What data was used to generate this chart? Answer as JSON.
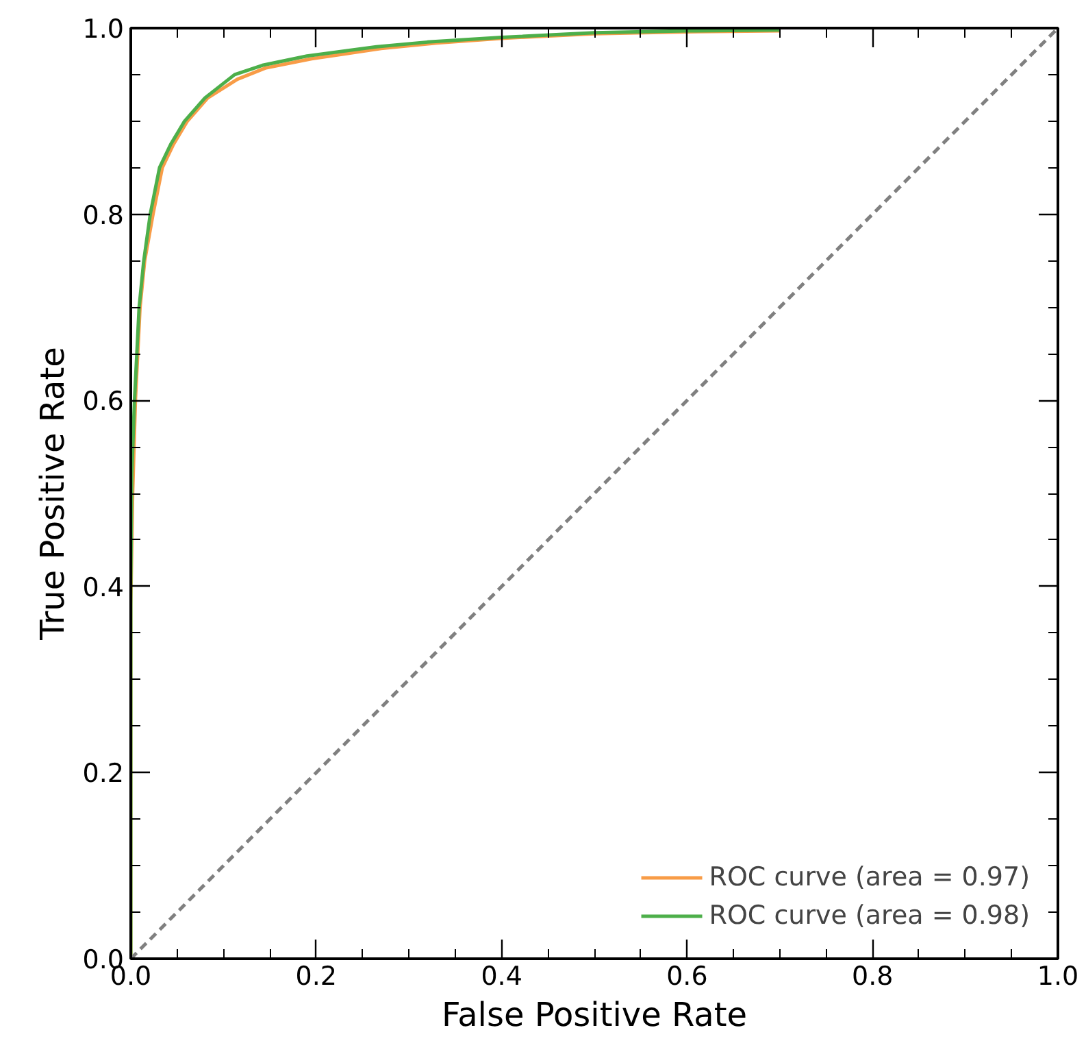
{
  "chart_data": {
    "type": "line",
    "xlabel": "False Positive Rate",
    "ylabel": "True Positive Rate",
    "xlim": [
      0,
      1
    ],
    "ylim": [
      0,
      1
    ],
    "xticks": [
      {
        "value": 0,
        "label": "0.0"
      },
      0.2,
      0.4,
      0.6,
      0.8,
      {
        "value": 1,
        "label": "1.0"
      }
    ],
    "yticks": [
      {
        "value": 0,
        "label": "0.0"
      },
      0.2,
      0.4,
      0.6,
      0.8,
      {
        "value": 1,
        "label": "1.0"
      }
    ],
    "grid": false,
    "legend": "bottom right",
    "series": [
      {
        "name": "ROC curve (area = 0.97)",
        "color": "#f89c47",
        "x": [
          0,
          0.0,
          0.002,
          0.005,
          0.01,
          0.015,
          0.024,
          0.034,
          0.046,
          0.061,
          0.083,
          0.115,
          0.145,
          0.195,
          0.27,
          0.33,
          0.4,
          0.5,
          0.6,
          0.7
        ],
        "values": [
          0,
          0.38,
          0.5,
          0.6,
          0.7,
          0.75,
          0.8,
          0.85,
          0.875,
          0.9,
          0.925,
          0.945,
          0.957,
          0.967,
          0.978,
          0.984,
          0.989,
          0.994,
          0.996,
          0.997
        ]
      },
      {
        "name": "ROC curve (area = 0.98)",
        "color": "#4daf4a",
        "x": [
          0,
          0.0,
          0.001,
          0.004,
          0.009,
          0.014,
          0.021,
          0.031,
          0.043,
          0.058,
          0.08,
          0.112,
          0.142,
          0.19,
          0.265,
          0.32,
          0.4,
          0.5,
          0.6,
          0.7
        ],
        "values": [
          0,
          0.4,
          0.52,
          0.6,
          0.7,
          0.75,
          0.8,
          0.85,
          0.875,
          0.9,
          0.925,
          0.95,
          0.96,
          0.97,
          0.98,
          0.985,
          0.99,
          0.995,
          0.997,
          0.998
        ]
      },
      {
        "color": "#808080",
        "line_style": "dashed",
        "x": [
          0,
          1
        ],
        "values": [
          0,
          1
        ]
      }
    ]
  }
}
